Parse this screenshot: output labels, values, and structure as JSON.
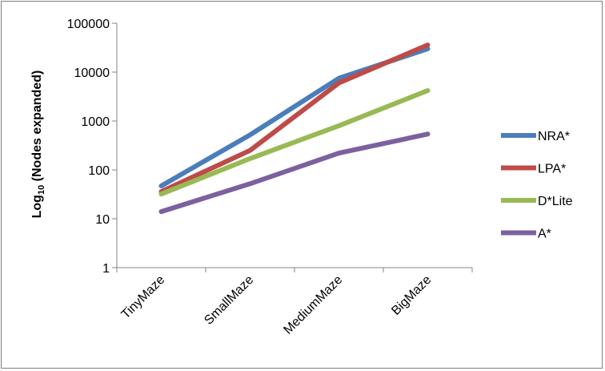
{
  "chart_data": {
    "type": "line",
    "title": "",
    "xlabel": "",
    "ylabel": "Log10 (Nodes expanded)",
    "ylabel_parts": {
      "main": "Log",
      "sub": "10",
      "rest": " (Nodes expanded)"
    },
    "yscale": "log",
    "ylim": [
      1,
      100000
    ],
    "yticks": [
      "100000",
      "10000",
      "1000",
      "100",
      "10",
      "1"
    ],
    "grid": false,
    "legend_position": "right",
    "categories": [
      "TinyMaze",
      "SmallMaze",
      "MediumMaze",
      "BigMaze"
    ],
    "series": [
      {
        "name": "NRA*",
        "color": "#4a7ebb",
        "values": [
          47,
          520,
          7500,
          30000
        ]
      },
      {
        "name": "LPA*",
        "color": "#be4b48",
        "values": [
          36,
          250,
          6000,
          36000
        ]
      },
      {
        "name": "D*Lite",
        "color": "#98b954",
        "values": [
          32,
          170,
          800,
          4200
        ]
      },
      {
        "name": "A*",
        "color": "#7d60a0",
        "values": [
          14,
          52,
          220,
          540
        ]
      }
    ]
  }
}
